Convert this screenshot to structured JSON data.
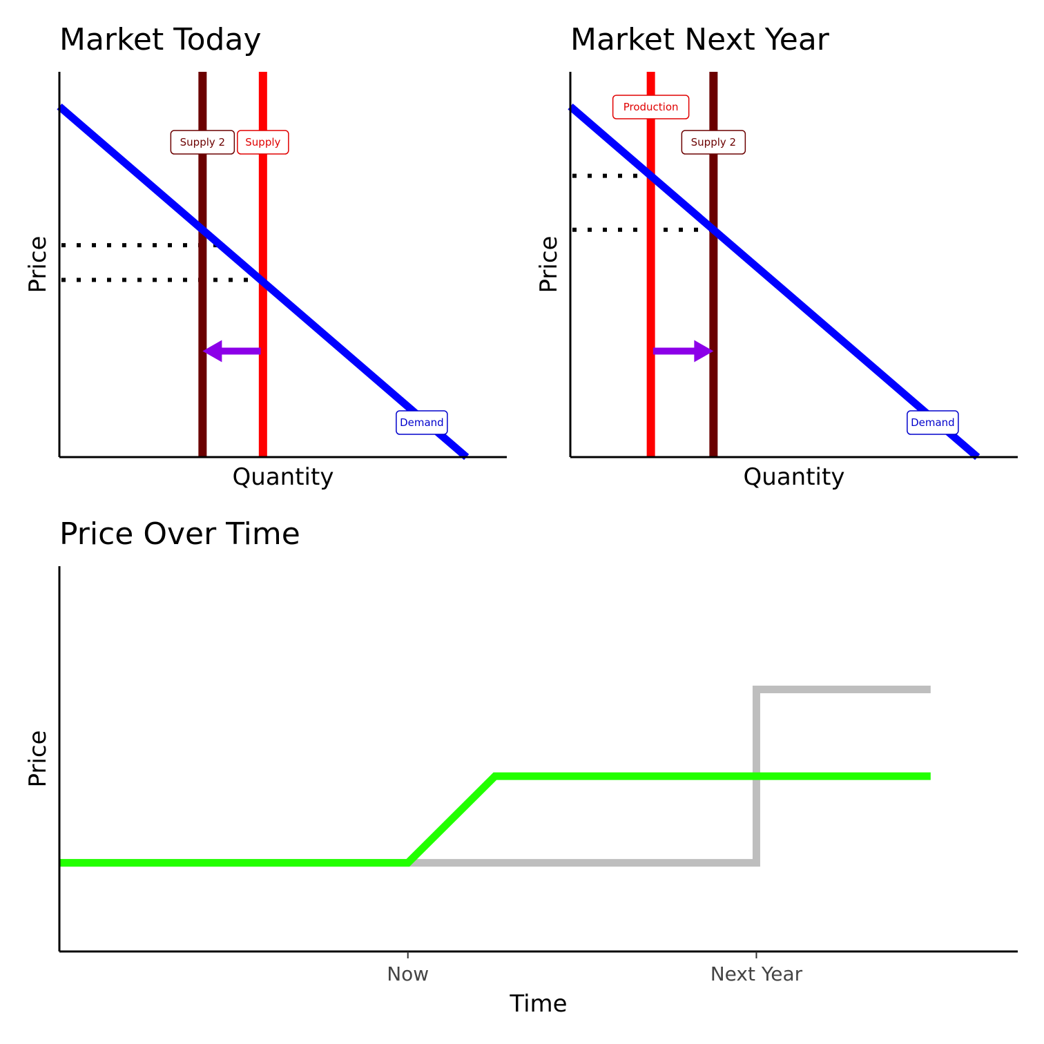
{
  "chart_data": [
    {
      "type": "line",
      "title": "Market Today",
      "xlabel": "Quantity",
      "ylabel": "Price",
      "xlim": [
        0,
        10
      ],
      "ylim": [
        0,
        10
      ],
      "grid": false,
      "series": [
        {
          "name": "Demand",
          "color": "#0000ff",
          "x": [
            0,
            9.1
          ],
          "y": [
            9.1,
            0
          ]
        },
        {
          "name": "Supply",
          "color": "#ff0000",
          "vertical_x": 4.55
        },
        {
          "name": "Supply 2",
          "color": "#6b0000",
          "vertical_x": 3.2
        }
      ],
      "equilibrium_price_guides": [
        5.5,
        4.6
      ],
      "shift_arrow": {
        "color": "#8c00e8",
        "from_x": 4.5,
        "to_x": 3.2,
        "y": 2.75
      }
    },
    {
      "type": "line",
      "title": "Market Next Year",
      "xlabel": "Quantity",
      "ylabel": "Price",
      "xlim": [
        0,
        10
      ],
      "ylim": [
        0,
        10
      ],
      "grid": false,
      "series": [
        {
          "name": "Demand",
          "color": "#0000ff",
          "x": [
            0,
            9.1
          ],
          "y": [
            9.1,
            0
          ]
        },
        {
          "name": "Production",
          "color": "#ff0000",
          "vertical_x": 1.8
        },
        {
          "name": "Supply 2",
          "color": "#6b0000",
          "vertical_x": 3.2
        }
      ],
      "equilibrium_price_guides": [
        7.3,
        5.9
      ],
      "shift_arrow": {
        "color": "#8c00e8",
        "from_x": 1.85,
        "to_x": 3.2,
        "y": 2.75
      }
    },
    {
      "type": "line",
      "title": "Price Over Time",
      "xlabel": "Time",
      "ylabel": "Price",
      "xlim": [
        -2,
        3.5
      ],
      "ylim": [
        0,
        10
      ],
      "grid": false,
      "x_ticks": [
        {
          "x": 0,
          "label": "Now"
        },
        {
          "x": 2,
          "label": "Next Year"
        }
      ],
      "series": [
        {
          "color": "#bebebe",
          "x": [
            -2,
            0,
            2,
            2,
            3
          ],
          "y": [
            2.3,
            2.3,
            2.3,
            6.8,
            6.8
          ]
        },
        {
          "color": "#22ff00",
          "x": [
            -2,
            0,
            0.5,
            3
          ],
          "y": [
            2.3,
            2.3,
            4.55,
            4.55
          ]
        }
      ]
    }
  ]
}
